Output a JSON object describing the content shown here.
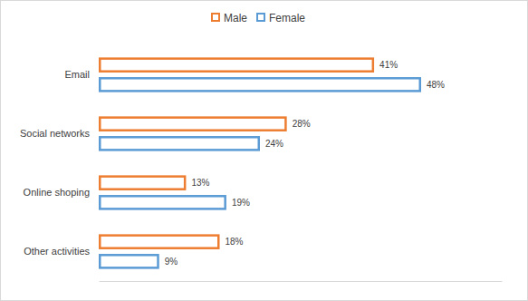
{
  "chart_data": {
    "type": "bar",
    "orientation": "horizontal",
    "categories": [
      "Email",
      "Social networks",
      "Online shoping",
      "Other activities"
    ],
    "series": [
      {
        "name": "Male",
        "color": "#ed7d31",
        "values": [
          41,
          28,
          13,
          18
        ],
        "value_labels": [
          "41%",
          "28%",
          "13%",
          "18%"
        ]
      },
      {
        "name": "Female",
        "color": "#5b9bd5",
        "values": [
          48,
          24,
          19,
          9
        ],
        "value_labels": [
          "48%",
          "24%",
          "19%",
          "9%"
        ]
      }
    ],
    "xlim": [
      0,
      60
    ],
    "grid": false,
    "legend": "top",
    "data_labels": true,
    "tick_labels": "y"
  }
}
